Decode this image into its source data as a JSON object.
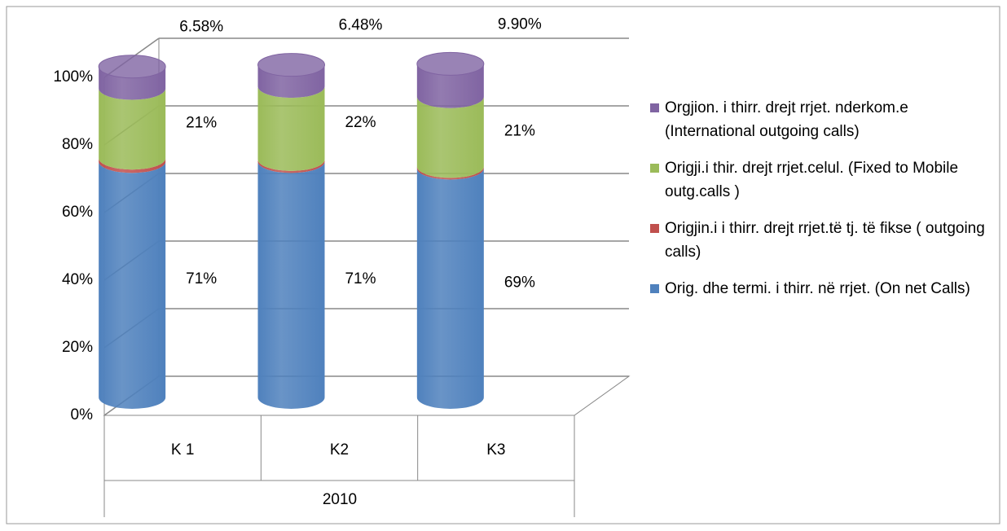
{
  "chart_data": {
    "type": "bar3d_stacked_cylinder",
    "categories": [
      "K 1",
      "K2",
      "K3"
    ],
    "category_group": "2010",
    "ylim": [
      0,
      100
    ],
    "yticks": [
      {
        "value": 0,
        "label": "0%"
      },
      {
        "value": 20,
        "label": "20%"
      },
      {
        "value": 40,
        "label": "40%"
      },
      {
        "value": 60,
        "label": "60%"
      },
      {
        "value": 80,
        "label": "80%"
      },
      {
        "value": 100,
        "label": "100%"
      }
    ],
    "grid": true,
    "legend": "right",
    "series": [
      {
        "name": "Orig.  dhe termi. i thirr.  në rrjet. (On net Calls)",
        "color": "#4f81bd",
        "values": [
          71,
          71,
          69
        ],
        "value_labels": [
          "71%",
          "71%",
          "69%"
        ]
      },
      {
        "name": "Origjin.i  i thirr. drejt  rrjet.të tj. të fikse ( outgoing calls)",
        "color": "#c0504d",
        "values": [
          1,
          0.6,
          0.5
        ]
      },
      {
        "name": "Origji.i thir.  drejt rrjet.celul. (Fixed to Mobile outg.calls )",
        "color": "#9bbb59",
        "values": [
          21,
          22,
          21
        ],
        "value_labels": [
          "21%",
          "22%",
          "21%"
        ]
      },
      {
        "name": "Orgjion. i thirr. drejt  rrjet. nderkom.e (International outgoing calls)",
        "color": "#8064a2",
        "values": [
          6.58,
          6.48,
          9.9
        ],
        "value_labels": [
          "6.58%",
          "6.48%",
          "9.90%"
        ]
      }
    ]
  }
}
